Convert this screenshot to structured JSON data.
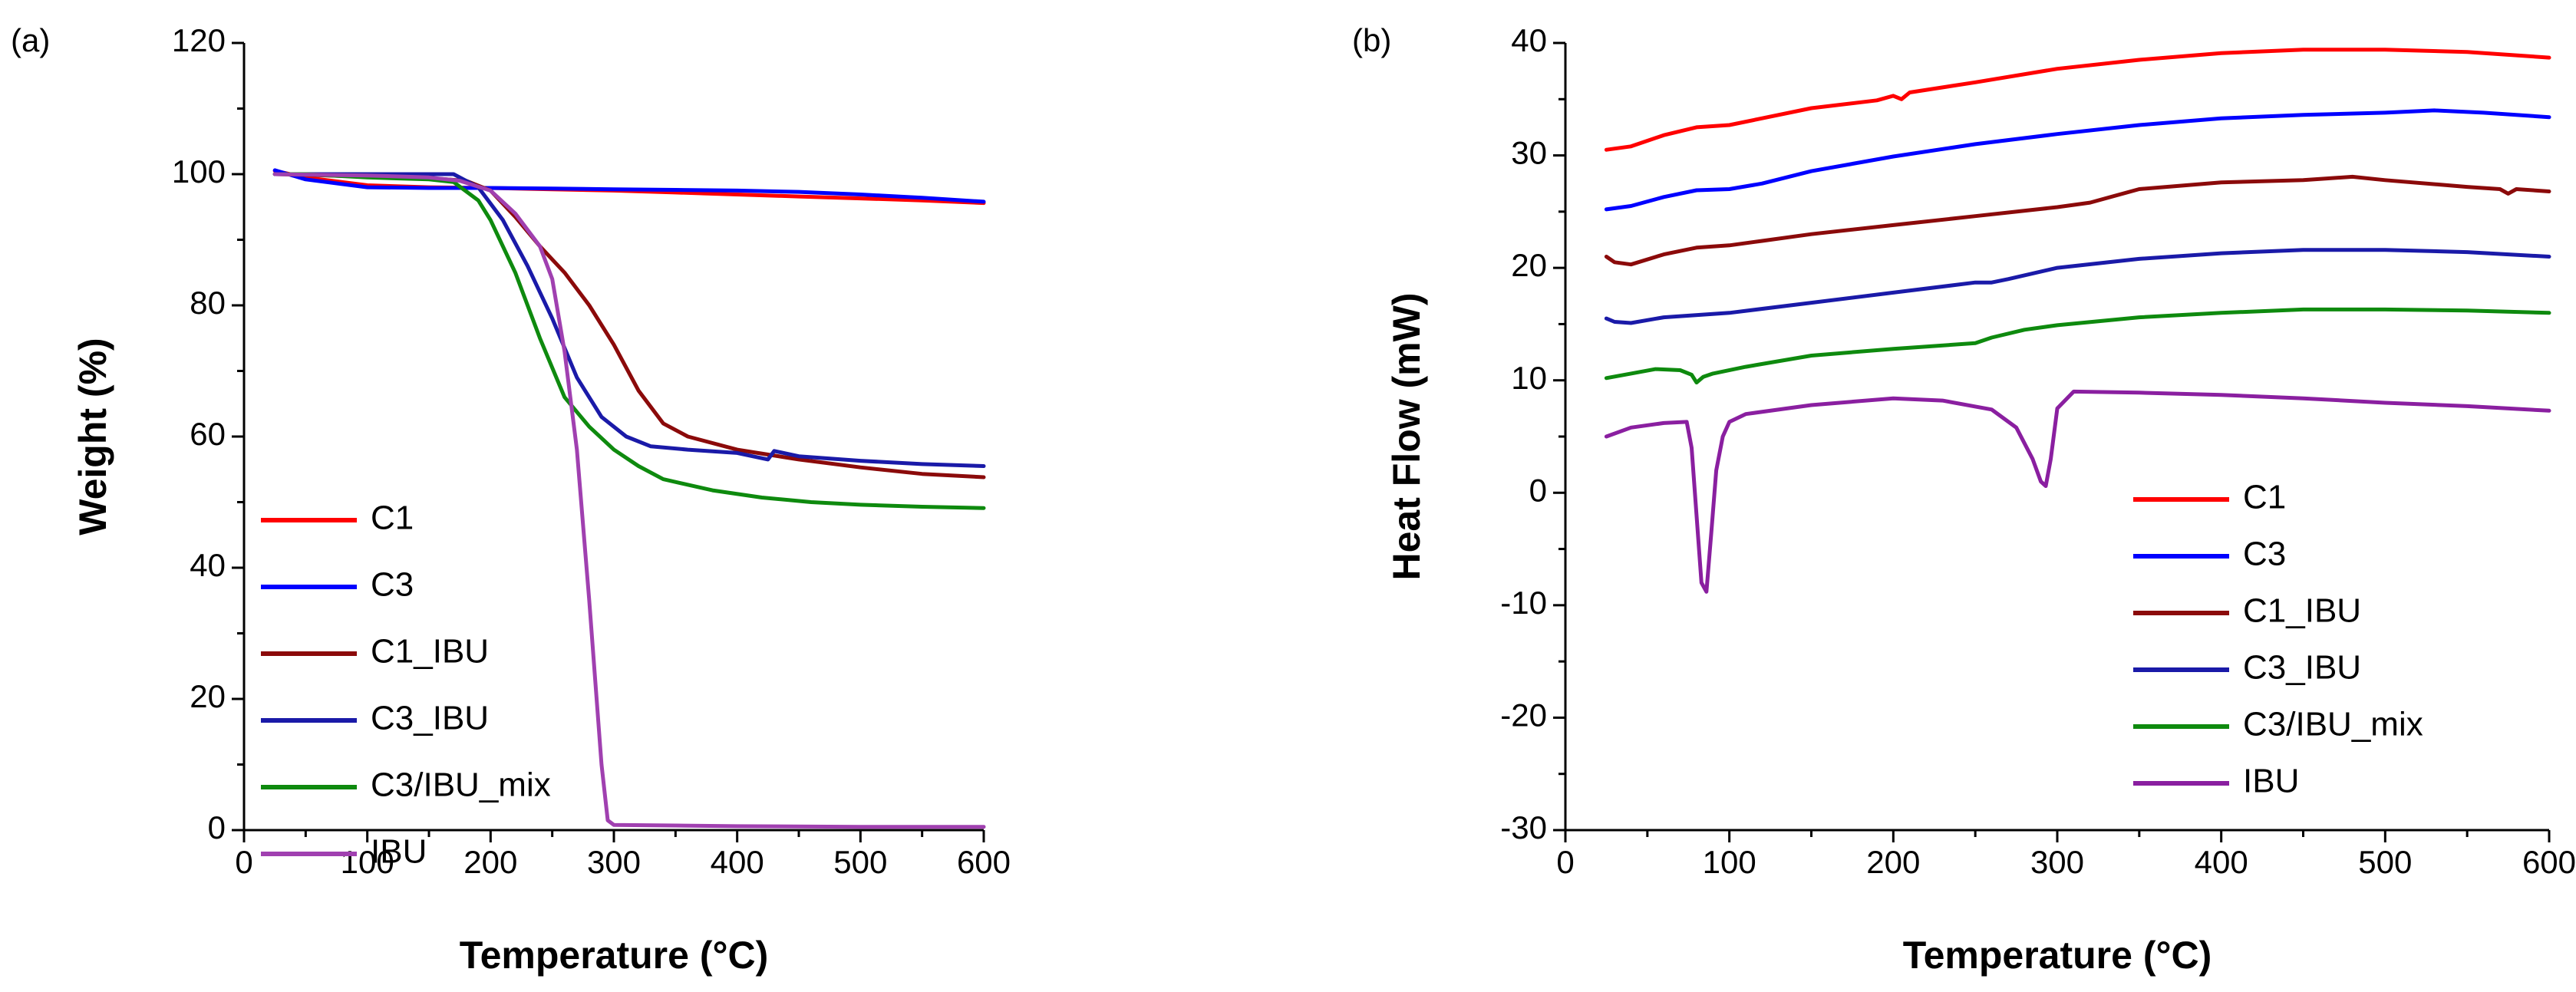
{
  "chart_data": [
    {
      "id": "tga",
      "panel_label": "(a)",
      "type": "line",
      "title": "",
      "xlabel": "Temperature (°C)",
      "ylabel": "Weight (%)",
      "xlim": [
        0,
        600
      ],
      "ylim": [
        0,
        120
      ],
      "xticks": [
        0,
        100,
        200,
        300,
        400,
        500,
        600
      ],
      "yticks": [
        0,
        20,
        40,
        60,
        80,
        100,
        120
      ],
      "legend_position": "bottom-left",
      "series": [
        {
          "name": "C1",
          "color": "#ff0000",
          "x": [
            25,
            50,
            100,
            150,
            200,
            250,
            300,
            350,
            400,
            450,
            500,
            550,
            600
          ],
          "y": [
            100.5,
            99.5,
            98.3,
            98.0,
            97.9,
            97.7,
            97.5,
            97.2,
            96.9,
            96.6,
            96.3,
            96.0,
            95.6
          ]
        },
        {
          "name": "C3",
          "color": "#0000ff",
          "x": [
            25,
            50,
            100,
            150,
            200,
            250,
            300,
            350,
            400,
            450,
            500,
            550,
            600
          ],
          "y": [
            100.6,
            99.2,
            98.0,
            97.9,
            97.9,
            97.8,
            97.7,
            97.6,
            97.5,
            97.3,
            96.9,
            96.4,
            95.8
          ]
        },
        {
          "name": "C1_IBU",
          "color": "#8b0a0a",
          "x": [
            25,
            50,
            100,
            150,
            180,
            200,
            220,
            240,
            260,
            280,
            300,
            320,
            340,
            360,
            400,
            450,
            500,
            550,
            600
          ],
          "y": [
            100,
            99.9,
            99.6,
            99.4,
            99.0,
            97.5,
            93.5,
            89.0,
            85.0,
            80.0,
            74.0,
            67.0,
            62.0,
            60.0,
            58.0,
            56.5,
            55.3,
            54.3,
            53.8
          ]
        },
        {
          "name": "C3_IBU",
          "color": "#1a1aa8",
          "x": [
            25,
            50,
            100,
            150,
            170,
            190,
            210,
            230,
            250,
            270,
            290,
            310,
            330,
            360,
            400,
            425,
            430,
            450,
            500,
            550,
            600
          ],
          "y": [
            100,
            100,
            100,
            100,
            100,
            98.0,
            93.0,
            86.0,
            78.0,
            69.0,
            63.0,
            60.0,
            58.5,
            58.0,
            57.5,
            56.5,
            57.8,
            57.0,
            56.3,
            55.8,
            55.5
          ]
        },
        {
          "name": "C3/IBU_mix",
          "color": "#0e8a0e",
          "x": [
            25,
            50,
            100,
            150,
            170,
            190,
            200,
            220,
            240,
            260,
            280,
            300,
            320,
            340,
            380,
            420,
            460,
            500,
            550,
            600
          ],
          "y": [
            100,
            100,
            99.5,
            99.2,
            98.8,
            96.0,
            93.0,
            85.0,
            75.0,
            66.0,
            61.5,
            58.0,
            55.5,
            53.5,
            51.8,
            50.7,
            50.0,
            49.6,
            49.3,
            49.1
          ]
        },
        {
          "name": "IBU",
          "color": "#a040b0",
          "x": [
            25,
            100,
            150,
            175,
            200,
            220,
            240,
            250,
            260,
            270,
            280,
            290,
            295,
            300,
            350,
            400,
            500,
            600
          ],
          "y": [
            100,
            99.8,
            99.5,
            99.0,
            97.5,
            94.0,
            89.0,
            84.0,
            73.0,
            58.0,
            35.0,
            10.0,
            1.5,
            0.8,
            0.7,
            0.6,
            0.5,
            0.5
          ]
        }
      ]
    },
    {
      "id": "dsc",
      "panel_label": "(b)",
      "type": "line",
      "title": "",
      "xlabel": "Temperature (°C)",
      "ylabel": "Heat Flow (mW)",
      "xlim": [
        0,
        600
      ],
      "ylim": [
        -30,
        40
      ],
      "xticks": [
        0,
        100,
        200,
        300,
        400,
        500,
        600
      ],
      "yticks": [
        -30,
        -20,
        -10,
        0,
        10,
        20,
        30,
        40
      ],
      "legend_position": "bottom-right",
      "series": [
        {
          "name": "C1",
          "color": "#ff0000",
          "x": [
            25,
            40,
            60,
            80,
            100,
            120,
            150,
            190,
            200,
            205,
            210,
            250,
            300,
            350,
            400,
            450,
            500,
            550,
            600
          ],
          "y": [
            30.5,
            30.8,
            31.8,
            32.5,
            32.7,
            33.3,
            34.2,
            34.9,
            35.3,
            35.0,
            35.6,
            36.5,
            37.7,
            38.5,
            39.1,
            39.4,
            39.4,
            39.2,
            38.7
          ]
        },
        {
          "name": "C3",
          "color": "#0000ff",
          "x": [
            25,
            40,
            60,
            80,
            100,
            120,
            150,
            200,
            250,
            300,
            350,
            400,
            450,
            500,
            530,
            560,
            600
          ],
          "y": [
            25.2,
            25.5,
            26.3,
            26.9,
            27.0,
            27.5,
            28.6,
            29.9,
            31.0,
            31.9,
            32.7,
            33.3,
            33.6,
            33.8,
            34.0,
            33.8,
            33.4
          ]
        },
        {
          "name": "C1_IBU",
          "color": "#8b0a0a",
          "x": [
            25,
            30,
            40,
            60,
            80,
            100,
            120,
            150,
            200,
            250,
            300,
            320,
            350,
            400,
            450,
            480,
            500,
            550,
            570,
            575,
            580,
            600
          ],
          "y": [
            21.0,
            20.5,
            20.3,
            21.2,
            21.8,
            22.0,
            22.4,
            23.0,
            23.8,
            24.6,
            25.4,
            25.8,
            27.0,
            27.6,
            27.8,
            28.1,
            27.8,
            27.2,
            27.0,
            26.6,
            27.0,
            26.8
          ]
        },
        {
          "name": "C3_IBU",
          "color": "#1a1aa8",
          "x": [
            25,
            30,
            40,
            60,
            100,
            150,
            200,
            250,
            260,
            270,
            300,
            350,
            400,
            450,
            500,
            550,
            600
          ],
          "y": [
            15.5,
            15.2,
            15.1,
            15.6,
            16.0,
            16.9,
            17.8,
            18.7,
            18.7,
            19.0,
            20.0,
            20.8,
            21.3,
            21.6,
            21.6,
            21.4,
            21.0
          ]
        },
        {
          "name": "C3/IBU_mix",
          "color": "#0e8a0e",
          "x": [
            25,
            40,
            55,
            70,
            77,
            80,
            84,
            90,
            110,
            150,
            200,
            250,
            260,
            280,
            300,
            350,
            400,
            450,
            500,
            550,
            600
          ],
          "y": [
            10.2,
            10.6,
            11.0,
            10.9,
            10.5,
            9.8,
            10.3,
            10.6,
            11.2,
            12.2,
            12.8,
            13.3,
            13.8,
            14.5,
            14.9,
            15.6,
            16.0,
            16.3,
            16.3,
            16.2,
            16.0
          ]
        },
        {
          "name": "IBU",
          "color": "#8a1fa0",
          "x": [
            25,
            40,
            60,
            74,
            77,
            80,
            83,
            86,
            89,
            92,
            96,
            100,
            110,
            150,
            200,
            230,
            260,
            275,
            285,
            290,
            293,
            296,
            300,
            310,
            350,
            400,
            450,
            500,
            550,
            600
          ],
          "y": [
            5.0,
            5.8,
            6.2,
            6.3,
            4.0,
            -2.0,
            -8.0,
            -8.8,
            -3.5,
            2.0,
            5.0,
            6.3,
            7.0,
            7.8,
            8.4,
            8.2,
            7.4,
            5.8,
            3.0,
            1.0,
            0.6,
            3.0,
            7.5,
            9.0,
            8.9,
            8.7,
            8.4,
            8.0,
            7.7,
            7.3
          ]
        }
      ]
    }
  ]
}
